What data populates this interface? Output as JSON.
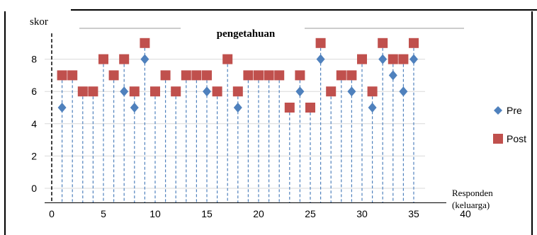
{
  "chart_data": {
    "type": "scatter",
    "title": "pengetahuan",
    "ylabel": "skor",
    "xlabel_line1": "Responden",
    "xlabel_line2": "(keluarga)",
    "xlim": [
      0,
      40
    ],
    "ylim": [
      -0.5,
      9.6
    ],
    "x_ticks": [
      0,
      5,
      10,
      15,
      20,
      25,
      30,
      35,
      40
    ],
    "y_ticks": [
      0,
      2,
      4,
      6,
      8
    ],
    "legend_position": "right",
    "series": [
      {
        "name": "Pre",
        "marker": "diamond",
        "color": "#4F81BD",
        "x": [
          1,
          7,
          8,
          9,
          15,
          18,
          24,
          26,
          29,
          31,
          32,
          33,
          34,
          35
        ],
        "y": [
          5,
          6,
          5,
          8,
          6,
          5,
          6,
          8,
          6,
          5,
          8,
          7,
          6,
          8
        ]
      },
      {
        "name": "Post",
        "marker": "square",
        "color": "#C0504D",
        "x": [
          1,
          2,
          3,
          4,
          5,
          6,
          7,
          8,
          9,
          10,
          11,
          12,
          13,
          14,
          15,
          16,
          17,
          18,
          19,
          20,
          21,
          22,
          23,
          24,
          25,
          26,
          27,
          28,
          29,
          30,
          31,
          32,
          33,
          34,
          35
        ],
        "y": [
          7,
          7,
          6,
          6,
          8,
          7,
          8,
          6,
          9,
          6,
          7,
          6,
          7,
          7,
          7,
          6,
          8,
          6,
          7,
          7,
          7,
          7,
          5,
          7,
          5,
          9,
          6,
          7,
          7,
          8,
          6,
          9,
          8,
          8,
          9
        ]
      }
    ]
  }
}
